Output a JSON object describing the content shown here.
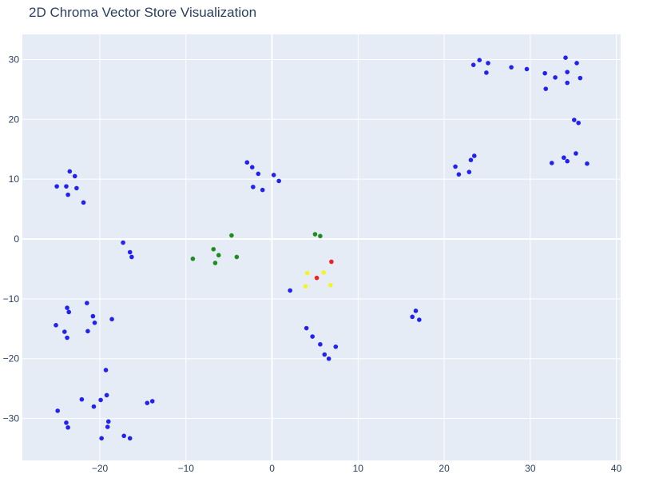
{
  "chart_data": {
    "type": "scatter",
    "title": "2D Chroma Vector Store Visualization",
    "xlabel": "",
    "ylabel": "",
    "xlim": [
      -29,
      40.5
    ],
    "ylim": [
      -37,
      34.2
    ],
    "xticks": [
      -20,
      -10,
      0,
      10,
      20,
      30,
      40
    ],
    "yticks": [
      -30,
      -20,
      -10,
      0,
      10,
      20,
      30
    ],
    "xtick_labels": [
      "−20",
      "−10",
      "0",
      "10",
      "20",
      "30",
      "40"
    ],
    "ytick_labels": [
      "−30",
      "−20",
      "−10",
      "0",
      "10",
      "20",
      "30"
    ],
    "grid": true,
    "legend": "none",
    "colors": {
      "blue": "#2222ee",
      "green": "#228b22",
      "yellow": "#f4f424",
      "red": "#ee2222",
      "plot_bg": "#e5ecf6",
      "grid": "#ffffff",
      "text": "#2a3f5f"
    },
    "points": [
      {
        "x": -25.0,
        "y": 8.8,
        "c": "blue"
      },
      {
        "x": -23.9,
        "y": 8.8,
        "c": "blue"
      },
      {
        "x": -23.5,
        "y": 11.3,
        "c": "blue"
      },
      {
        "x": -22.9,
        "y": 10.5,
        "c": "blue"
      },
      {
        "x": -23.7,
        "y": 7.4,
        "c": "blue"
      },
      {
        "x": -22.7,
        "y": 8.5,
        "c": "blue"
      },
      {
        "x": -21.9,
        "y": 6.1,
        "c": "blue"
      },
      {
        "x": -17.3,
        "y": -0.6,
        "c": "blue"
      },
      {
        "x": -16.5,
        "y": -2.2,
        "c": "blue"
      },
      {
        "x": -16.3,
        "y": -3.0,
        "c": "blue"
      },
      {
        "x": -2.9,
        "y": 12.8,
        "c": "blue"
      },
      {
        "x": -2.3,
        "y": 12.0,
        "c": "blue"
      },
      {
        "x": -1.6,
        "y": 10.9,
        "c": "blue"
      },
      {
        "x": -2.2,
        "y": 8.7,
        "c": "blue"
      },
      {
        "x": -1.1,
        "y": 8.2,
        "c": "blue"
      },
      {
        "x": 0.2,
        "y": 10.7,
        "c": "blue"
      },
      {
        "x": 0.8,
        "y": 9.7,
        "c": "blue"
      },
      {
        "x": -9.2,
        "y": -3.3,
        "c": "green"
      },
      {
        "x": -6.8,
        "y": -1.7,
        "c": "green"
      },
      {
        "x": -6.2,
        "y": -2.7,
        "c": "green"
      },
      {
        "x": -6.6,
        "y": -4.0,
        "c": "green"
      },
      {
        "x": -4.7,
        "y": 0.6,
        "c": "green"
      },
      {
        "x": -4.1,
        "y": -3.0,
        "c": "green"
      },
      {
        "x": 5.0,
        "y": 0.8,
        "c": "green"
      },
      {
        "x": 5.6,
        "y": 0.5,
        "c": "green"
      },
      {
        "x": 4.1,
        "y": -5.7,
        "c": "yellow"
      },
      {
        "x": 6.0,
        "y": -5.6,
        "c": "yellow"
      },
      {
        "x": 3.9,
        "y": -7.9,
        "c": "yellow"
      },
      {
        "x": 6.8,
        "y": -7.7,
        "c": "yellow"
      },
      {
        "x": 6.9,
        "y": -3.8,
        "c": "red"
      },
      {
        "x": 5.2,
        "y": -6.5,
        "c": "red"
      },
      {
        "x": 2.1,
        "y": -8.6,
        "c": "blue"
      },
      {
        "x": 4.0,
        "y": -14.9,
        "c": "blue"
      },
      {
        "x": 4.7,
        "y": -16.3,
        "c": "blue"
      },
      {
        "x": 5.6,
        "y": -17.6,
        "c": "blue"
      },
      {
        "x": 6.1,
        "y": -19.3,
        "c": "blue"
      },
      {
        "x": 6.6,
        "y": -20.0,
        "c": "blue"
      },
      {
        "x": 7.4,
        "y": -18.0,
        "c": "blue"
      },
      {
        "x": 16.7,
        "y": -12.0,
        "c": "blue"
      },
      {
        "x": 16.3,
        "y": -13.0,
        "c": "blue"
      },
      {
        "x": 17.1,
        "y": -13.5,
        "c": "blue"
      },
      {
        "x": 21.3,
        "y": 12.1,
        "c": "blue"
      },
      {
        "x": 21.7,
        "y": 10.8,
        "c": "blue"
      },
      {
        "x": 23.1,
        "y": 13.2,
        "c": "blue"
      },
      {
        "x": 23.5,
        "y": 13.9,
        "c": "blue"
      },
      {
        "x": 22.9,
        "y": 11.2,
        "c": "blue"
      },
      {
        "x": 23.4,
        "y": 29.1,
        "c": "blue"
      },
      {
        "x": 24.1,
        "y": 29.9,
        "c": "blue"
      },
      {
        "x": 25.1,
        "y": 29.4,
        "c": "blue"
      },
      {
        "x": 24.9,
        "y": 27.8,
        "c": "blue"
      },
      {
        "x": 27.8,
        "y": 28.7,
        "c": "blue"
      },
      {
        "x": 29.6,
        "y": 28.4,
        "c": "blue"
      },
      {
        "x": 31.7,
        "y": 27.7,
        "c": "blue"
      },
      {
        "x": 32.9,
        "y": 27.0,
        "c": "blue"
      },
      {
        "x": 31.8,
        "y": 25.1,
        "c": "blue"
      },
      {
        "x": 34.1,
        "y": 30.3,
        "c": "blue"
      },
      {
        "x": 34.3,
        "y": 27.9,
        "c": "blue"
      },
      {
        "x": 35.4,
        "y": 29.4,
        "c": "blue"
      },
      {
        "x": 34.3,
        "y": 26.1,
        "c": "blue"
      },
      {
        "x": 35.8,
        "y": 26.9,
        "c": "blue"
      },
      {
        "x": 35.1,
        "y": 19.9,
        "c": "blue"
      },
      {
        "x": 35.6,
        "y": 19.4,
        "c": "blue"
      },
      {
        "x": 32.5,
        "y": 12.7,
        "c": "blue"
      },
      {
        "x": 33.9,
        "y": 13.6,
        "c": "blue"
      },
      {
        "x": 34.3,
        "y": 13.0,
        "c": "blue"
      },
      {
        "x": 35.3,
        "y": 14.3,
        "c": "blue"
      },
      {
        "x": 36.6,
        "y": 12.6,
        "c": "blue"
      },
      {
        "x": -25.1,
        "y": -14.4,
        "c": "blue"
      },
      {
        "x": -24.1,
        "y": -15.5,
        "c": "blue"
      },
      {
        "x": -23.8,
        "y": -16.5,
        "c": "blue"
      },
      {
        "x": -23.8,
        "y": -11.5,
        "c": "blue"
      },
      {
        "x": -23.6,
        "y": -12.2,
        "c": "blue"
      },
      {
        "x": -21.5,
        "y": -10.7,
        "c": "blue"
      },
      {
        "x": -21.4,
        "y": -15.4,
        "c": "blue"
      },
      {
        "x": -20.8,
        "y": -12.9,
        "c": "blue"
      },
      {
        "x": -20.6,
        "y": -14.0,
        "c": "blue"
      },
      {
        "x": -18.6,
        "y": -13.4,
        "c": "blue"
      },
      {
        "x": -19.3,
        "y": -21.9,
        "c": "blue"
      },
      {
        "x": -22.1,
        "y": -26.8,
        "c": "blue"
      },
      {
        "x": -20.7,
        "y": -28.0,
        "c": "blue"
      },
      {
        "x": -19.9,
        "y": -26.9,
        "c": "blue"
      },
      {
        "x": -19.2,
        "y": -26.1,
        "c": "blue"
      },
      {
        "x": -24.9,
        "y": -28.7,
        "c": "blue"
      },
      {
        "x": -23.9,
        "y": -30.7,
        "c": "blue"
      },
      {
        "x": -23.7,
        "y": -31.5,
        "c": "blue"
      },
      {
        "x": -19.0,
        "y": -30.5,
        "c": "blue"
      },
      {
        "x": -19.1,
        "y": -31.4,
        "c": "blue"
      },
      {
        "x": -19.8,
        "y": -33.3,
        "c": "blue"
      },
      {
        "x": -17.2,
        "y": -32.9,
        "c": "blue"
      },
      {
        "x": -16.5,
        "y": -33.3,
        "c": "blue"
      },
      {
        "x": -14.5,
        "y": -27.4,
        "c": "blue"
      },
      {
        "x": -13.9,
        "y": -27.1,
        "c": "blue"
      }
    ]
  }
}
